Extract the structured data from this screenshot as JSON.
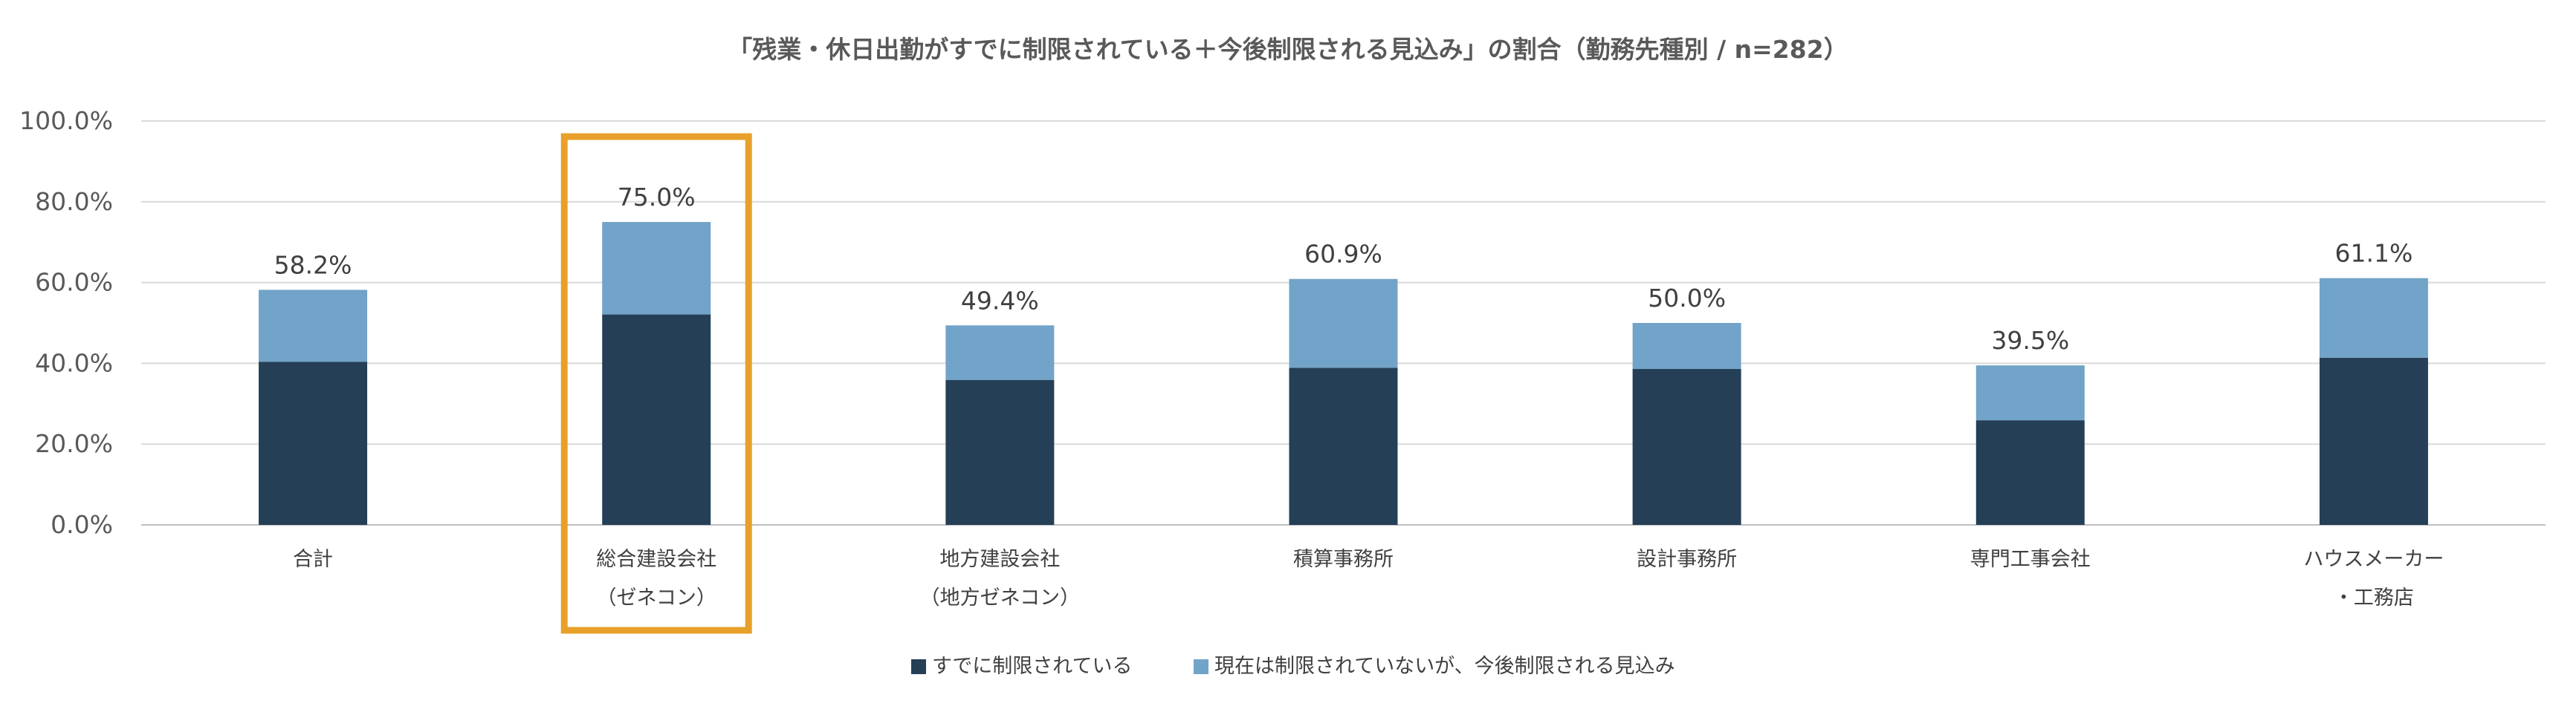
{
  "chart_data": {
    "type": "bar",
    "stacked": true,
    "title": "「残業・休日出勤がすでに制限されている＋今後制限される見込み」の割合（勤務先種別 / n=282）",
    "categories": [
      [
        "合計"
      ],
      [
        "総合建設会社",
        "（ゼネコン）"
      ],
      [
        "地方建設会社",
        "（地方ゼネコン）"
      ],
      [
        "積算事務所"
      ],
      [
        "設計事務所"
      ],
      [
        "専門工事会社"
      ],
      [
        "ハウスメーカー",
        "・工務店"
      ]
    ],
    "series": [
      {
        "name": "すでに制限されている",
        "color": "#243f56",
        "values": [
          40.4,
          52.1,
          35.9,
          38.9,
          38.6,
          25.9,
          41.4
        ]
      },
      {
        "name": "現在は制限されていないが、今後制限される見込み",
        "color": "#72a3c8",
        "values": [
          17.8,
          22.9,
          13.5,
          22.0,
          11.4,
          13.6,
          19.7
        ]
      }
    ],
    "total_labels": [
      "58.2%",
      "75.0%",
      "49.4%",
      "60.9%",
      "50.0%",
      "39.5%",
      "61.1%"
    ],
    "totals": [
      58.2,
      75.0,
      49.4,
      60.9,
      50.0,
      39.5,
      61.1
    ],
    "ylim": [
      0,
      100
    ],
    "yticks": [
      "0.0%",
      "20.0%",
      "40.0%",
      "60.0%",
      "80.0%",
      "100.0%"
    ],
    "ytick_values": [
      0,
      20,
      40,
      60,
      80,
      100
    ],
    "legend_position": "bottom-center",
    "highlight_index": 1,
    "highlight_color": "#e8a02a"
  }
}
